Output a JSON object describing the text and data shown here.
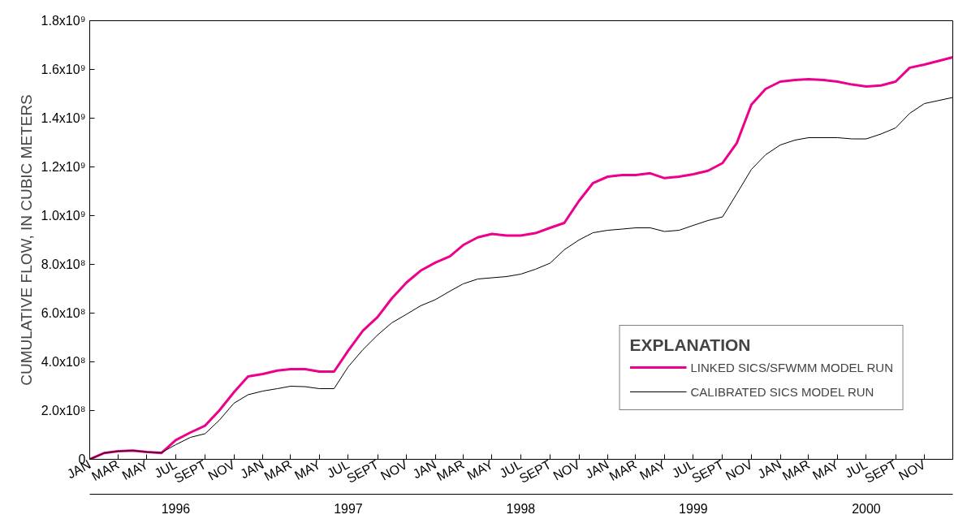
{
  "chart_data": {
    "type": "line",
    "ylabel": "CUMULATIVE FLOW, IN CUBIC METERS",
    "legend_title": "EXPLANATION",
    "legend": "bottom right",
    "grid": false,
    "marker": "none",
    "line_style": "solid",
    "x": [
      "1996-01-01",
      "1996-02-01",
      "1996-03-01",
      "1996-04-01",
      "1996-05-01",
      "1996-06-01",
      "1996-07-01",
      "1996-08-01",
      "1996-09-01",
      "1996-10-01",
      "1996-11-01",
      "1996-12-01",
      "1997-01-01",
      "1997-02-01",
      "1997-03-01",
      "1997-04-01",
      "1997-05-01",
      "1997-06-01",
      "1997-07-01",
      "1997-08-01",
      "1997-09-01",
      "1997-10-01",
      "1997-11-01",
      "1997-12-01",
      "1998-01-01",
      "1998-02-01",
      "1998-03-01",
      "1998-04-01",
      "1998-05-01",
      "1998-06-01",
      "1998-07-01",
      "1998-08-01",
      "1998-09-01",
      "1998-10-01",
      "1998-11-01",
      "1998-12-01",
      "1999-01-01",
      "1999-02-01",
      "1999-03-01",
      "1999-04-01",
      "1999-05-01",
      "1999-06-01",
      "1999-07-01",
      "1999-08-01",
      "1999-09-01",
      "1999-10-01",
      "1999-11-01",
      "1999-12-01",
      "2000-01-01",
      "2000-02-01",
      "2000-03-01",
      "2000-04-01",
      "2000-05-01",
      "2000-06-01",
      "2000-07-01",
      "2000-08-01",
      "2000-09-01",
      "2000-10-01",
      "2000-11-01",
      "2000-12-31"
    ],
    "series": [
      {
        "name": "LINKED SICS/SFWMM MODEL RUN",
        "color": "#ec008c",
        "values": [
          0,
          26000000.0,
          33000000.0,
          36000000.0,
          30000000.0,
          26000000.0,
          79000000.0,
          110000000.0,
          138000000.0,
          200000000.0,
          275000000.0,
          340000000.0,
          350000000.0,
          364000000.0,
          370000000.0,
          370000000.0,
          360000000.0,
          360000000.0,
          446000000.0,
          528000000.0,
          584000000.0,
          660000000.0,
          725000000.0,
          774000000.0,
          807000000.0,
          833000000.0,
          879000000.0,
          911000000.0,
          925000000.0,
          918000000.0,
          918000000.0,
          928000000.0,
          950000000.0,
          970000000.0,
          1060000000.0,
          1134000000.0,
          1160000000.0,
          1167000000.0,
          1167000000.0,
          1174000000.0,
          1154000000.0,
          1160000000.0,
          1170000000.0,
          1184000000.0,
          1216000000.0,
          1298000000.0,
          1456000000.0,
          1520000000.0,
          1550000000.0,
          1557000000.0,
          1560000000.0,
          1557000000.0,
          1550000000.0,
          1538000000.0,
          1530000000.0,
          1534000000.0,
          1550000000.0,
          1607000000.0,
          1620000000.0,
          1650000000.0
        ]
      },
      {
        "name": "CALIBRATED SICS MODEL RUN",
        "color": "#000000",
        "values": [
          0,
          26000000.0,
          33000000.0,
          36000000.0,
          30000000.0,
          28000000.0,
          60000000.0,
          90000000.0,
          105000000.0,
          160000000.0,
          230000000.0,
          265000000.0,
          280000000.0,
          290000000.0,
          300000000.0,
          298000000.0,
          290000000.0,
          290000000.0,
          380000000.0,
          450000000.0,
          510000000.0,
          560000000.0,
          595000000.0,
          630000000.0,
          655000000.0,
          690000000.0,
          720000000.0,
          740000000.0,
          745000000.0,
          750000000.0,
          760000000.0,
          780000000.0,
          805000000.0,
          860000000.0,
          900000000.0,
          930000000.0,
          940000000.0,
          945000000.0,
          950000000.0,
          950000000.0,
          935000000.0,
          940000000.0,
          960000000.0,
          980000000.0,
          995000000.0,
          1090000000.0,
          1190000000.0,
          1250000000.0,
          1290000000.0,
          1310000000.0,
          1320000000.0,
          1320000000.0,
          1320000000.0,
          1315000000.0,
          1315000000.0,
          1335000000.0,
          1360000000.0,
          1420000000.0,
          1460000000.0,
          1485000000.0
        ]
      }
    ],
    "ylim": [
      0,
      1800000000.0
    ],
    "yticks": [
      0,
      {
        "value": 200000000.0,
        "label": "2.0x10⁸"
      },
      {
        "value": 400000000.0,
        "label": "4.0x10⁸"
      },
      {
        "value": 600000000.0,
        "label": "6.0x10⁸"
      },
      {
        "value": 800000000.0,
        "label": "8.0x10⁸"
      },
      {
        "value": 1000000000.0,
        "label": "1.0x10⁹"
      },
      {
        "value": 1200000000.0,
        "label": "1.2x10⁹"
      },
      {
        "value": 1400000000.0,
        "label": "1.4x10⁹"
      },
      {
        "value": 1600000000.0,
        "label": "1.6x10⁹"
      },
      {
        "value": 1800000000.0,
        "label": "1.8x10⁹"
      }
    ],
    "xlim": [
      "1996-01-01",
      "2000-12-31"
    ],
    "xticks": [
      {
        "value": "1996-01",
        "label": "JAN"
      },
      {
        "value": "1996-03",
        "label": "MAR"
      },
      {
        "value": "1996-05",
        "label": "MAY"
      },
      {
        "value": "1996-07",
        "label": "JUL"
      },
      {
        "value": "1996-09",
        "label": "SEPT"
      },
      {
        "value": "1996-11",
        "label": "NOV"
      },
      {
        "value": "1997-01",
        "label": "JAN"
      },
      {
        "value": "1997-03",
        "label": "MAR"
      },
      {
        "value": "1997-05",
        "label": "MAY"
      },
      {
        "value": "1997-07",
        "label": "JUL"
      },
      {
        "value": "1997-09",
        "label": "SEPT"
      },
      {
        "value": "1997-11",
        "label": "NOV"
      },
      {
        "value": "1998-01",
        "label": "JAN"
      },
      {
        "value": "1998-03",
        "label": "MAR"
      },
      {
        "value": "1998-05",
        "label": "MAY"
      },
      {
        "value": "1998-07",
        "label": "JUL"
      },
      {
        "value": "1998-09",
        "label": "SEPT"
      },
      {
        "value": "1998-11",
        "label": "NOV"
      },
      {
        "value": "1999-01",
        "label": "JAN"
      },
      {
        "value": "1999-03",
        "label": "MAR"
      },
      {
        "value": "1999-05",
        "label": "MAY"
      },
      {
        "value": "1999-07",
        "label": "JUL"
      },
      {
        "value": "1999-09",
        "label": "SEPT"
      },
      {
        "value": "1999-11",
        "label": "NOV"
      },
      {
        "value": "2000-01",
        "label": "JAN"
      },
      {
        "value": "2000-03",
        "label": "MAR"
      },
      {
        "value": "2000-05",
        "label": "MAY"
      },
      {
        "value": "2000-07",
        "label": "JUL"
      },
      {
        "value": "2000-09",
        "label": "SEPT"
      },
      {
        "value": "2000-11",
        "label": "NOV"
      }
    ],
    "annotations": [
      "1996",
      "1997",
      "1998",
      "1999",
      "2000"
    ]
  }
}
